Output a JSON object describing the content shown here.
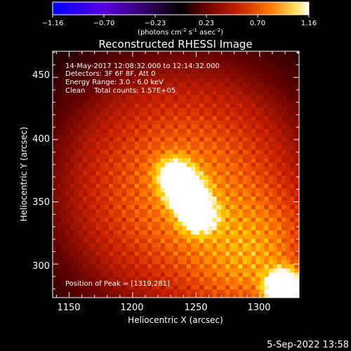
{
  "colorbar": {
    "ticks": [
      "−1.16",
      "−0.70",
      "−0.23",
      "0.23",
      "0.70",
      "1.16"
    ],
    "unit_parts": [
      "(photons cm",
      "-2",
      " s",
      "-1",
      " asec",
      "-2",
      ")"
    ]
  },
  "chart_data": {
    "type": "heatmap",
    "title": "Reconstructed RHESSI Image",
    "xlabel": "Heliocentric X (arcsec)",
    "ylabel": "Heliocentric Y (arcsec)",
    "xlim": [
      1137,
      1331
    ],
    "ylim": [
      273,
      471
    ],
    "xticks": [
      1150,
      1200,
      1250,
      1300
    ],
    "yticks": [
      300,
      350,
      400,
      450
    ],
    "annotations": [
      "14-May-2017 12:08:32.000 to 12:14:32.000",
      "Detectors: 3F 6F 8F, Att 0",
      "Energy Range: 3.0 - 6.0 keV",
      "Clean    Total counts: 1.57E+05"
    ],
    "peak_label": "Position of Peak = [1319,281]",
    "sources": [
      {
        "x": 1242,
        "y": 358,
        "intensity": 1.0
      },
      {
        "x": 1252,
        "y": 340,
        "intensity": 0.75
      },
      {
        "x": 1233,
        "y": 372,
        "intensity": 0.55
      },
      {
        "x": 1319,
        "y": 281,
        "intensity": 1.16
      }
    ],
    "colormap": [
      "#0000ff",
      "#6a00d8",
      "#2a0040",
      "#000000",
      "#600000",
      "#c82000",
      "#ff7000",
      "#ffd000",
      "#ffffff"
    ]
  },
  "footer": {
    "date": "5-Sep-2022 13:58"
  }
}
